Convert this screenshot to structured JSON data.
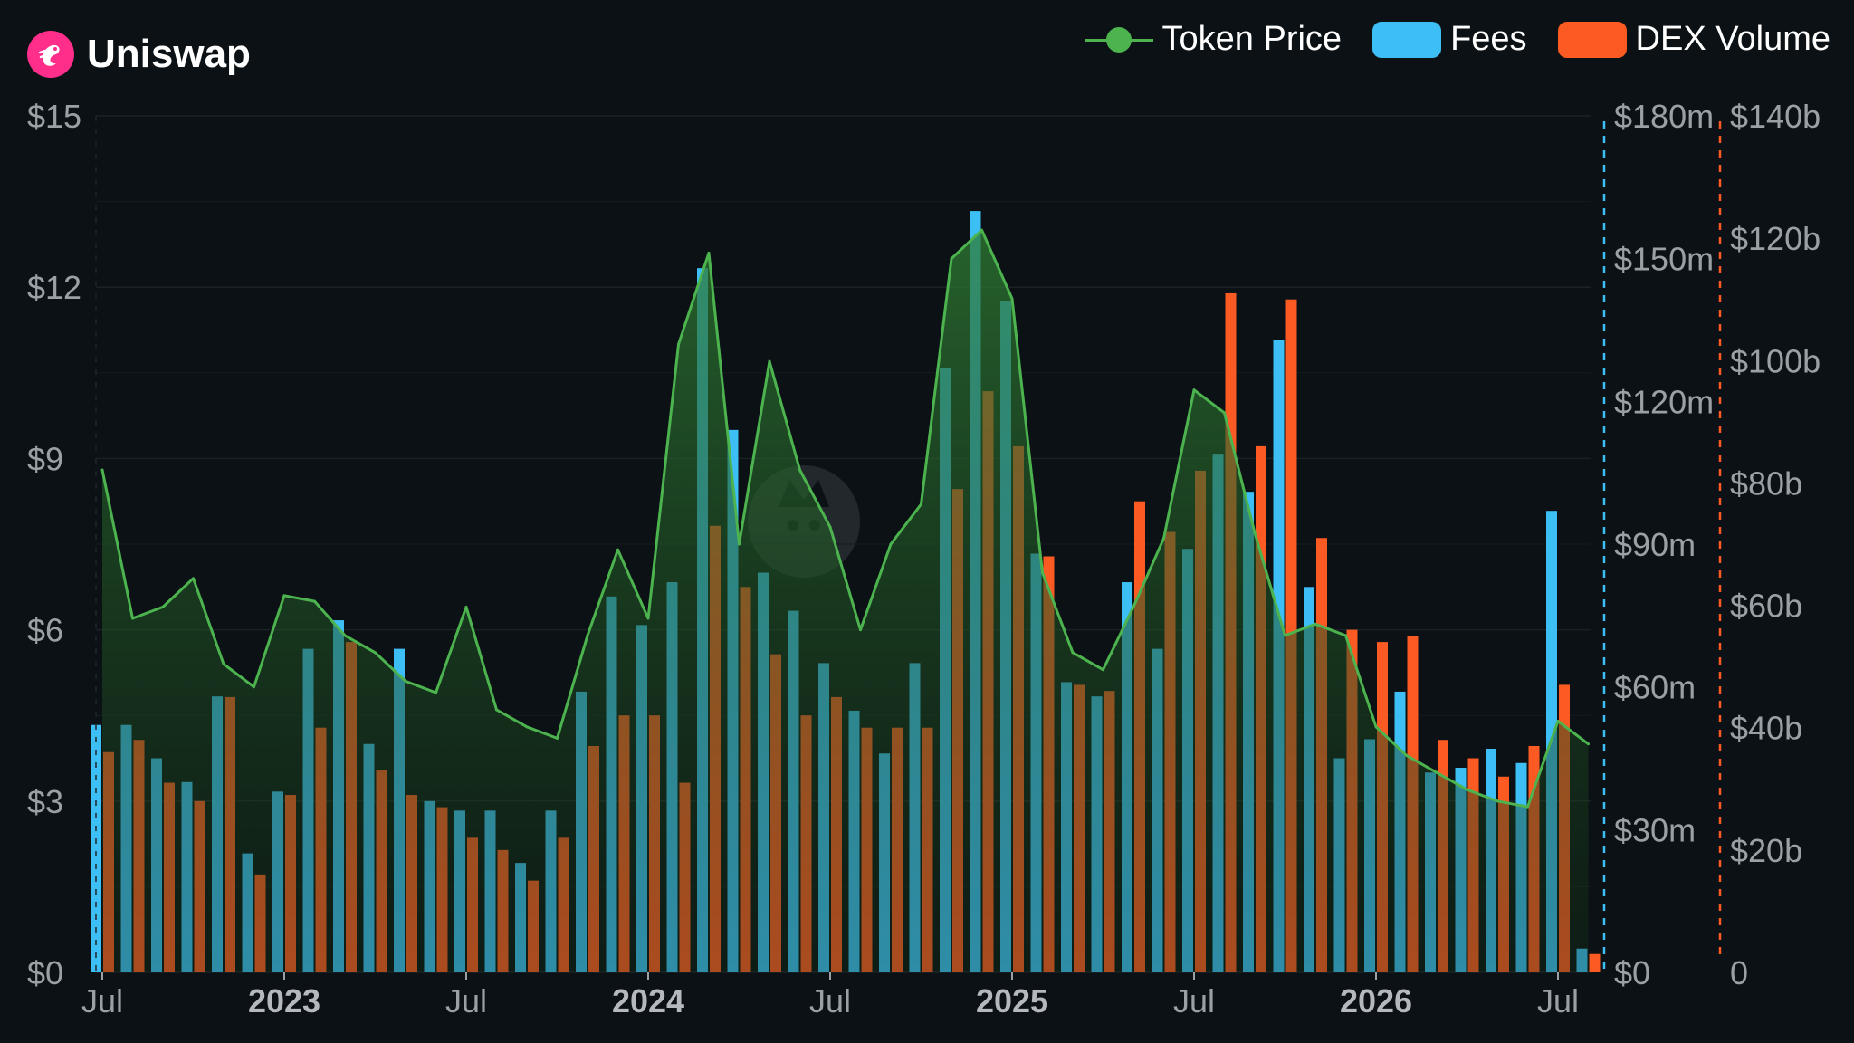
{
  "header": {
    "title": "Uniswap"
  },
  "legend": [
    {
      "label": "Token Price",
      "color": "#4cb34f",
      "kind": "line"
    },
    {
      "label": "Fees",
      "color": "#3dbff5",
      "kind": "bar"
    },
    {
      "label": "DEX Volume",
      "color": "#fc5a23",
      "kind": "bar"
    }
  ],
  "chart_data": {
    "type": "bar",
    "title": "",
    "x_ticks": [
      {
        "label": "Jul",
        "index": 0,
        "bold": false
      },
      {
        "label": "2023",
        "index": 6,
        "bold": true
      },
      {
        "label": "Jul",
        "index": 12,
        "bold": false
      },
      {
        "label": "2024",
        "index": 18,
        "bold": true
      },
      {
        "label": "Jul",
        "index": 24,
        "bold": false
      },
      {
        "label": "2025",
        "index": 30,
        "bold": true
      },
      {
        "label": "Jul",
        "index": 36,
        "bold": false
      },
      {
        "label": "2026",
        "index": 42,
        "bold": true
      },
      {
        "label": "Jul",
        "index": 48,
        "bold": false
      }
    ],
    "axes": {
      "price": {
        "range": [
          0,
          15
        ],
        "ticks": [
          0,
          3,
          6,
          9,
          12,
          15
        ],
        "labels": [
          "$0",
          "$3",
          "$6",
          "$9",
          "$12",
          "$15"
        ]
      },
      "fees": {
        "range": [
          0,
          180
        ],
        "unit": "millions USD",
        "ticks": [
          0,
          30,
          60,
          90,
          120,
          150,
          180
        ],
        "labels": [
          "$0",
          "$30m",
          "$60m",
          "$90m",
          "$120m",
          "$150m",
          "$180m"
        ]
      },
      "volume": {
        "range": [
          0,
          140
        ],
        "unit": "billions USD",
        "ticks": [
          0,
          20,
          40,
          60,
          80,
          100,
          120,
          140
        ],
        "labels": [
          "0",
          "$20b",
          "$40b",
          "$60b",
          "$80b",
          "$100b",
          "$120b",
          "$140b"
        ]
      }
    },
    "series": [
      {
        "name": "Token Price",
        "color": "#4cb34f",
        "values": [
          8.8,
          6.2,
          6.4,
          6.9,
          5.4,
          5.0,
          6.6,
          6.5,
          5.9,
          5.6,
          5.1,
          4.9,
          6.4,
          4.6,
          4.3,
          4.1,
          5.9,
          7.4,
          6.2,
          11.0,
          12.6,
          7.5,
          10.7,
          8.8,
          7.8,
          6.0,
          7.5,
          8.2,
          12.5,
          13.0,
          11.8,
          7.0,
          5.6,
          5.3,
          6.4,
          7.6,
          10.2,
          9.8,
          7.7,
          5.9,
          6.1,
          5.9,
          4.3,
          3.8,
          3.5,
          3.2,
          3.0,
          2.9,
          4.4,
          4.0
        ]
      },
      {
        "name": "Fees",
        "color": "#3dbff5",
        "values": [
          52,
          52,
          45,
          40,
          58,
          25,
          38,
          68,
          74,
          48,
          68,
          36,
          34,
          34,
          23,
          34,
          59,
          79,
          73,
          82,
          148,
          114,
          84,
          76,
          65,
          55,
          46,
          65,
          127,
          160,
          141,
          88,
          61,
          58,
          82,
          68,
          89,
          109,
          101,
          133,
          81,
          45,
          49,
          59,
          42,
          43,
          47,
          44,
          97,
          5
        ]
      },
      {
        "name": "DEX Volume",
        "color": "#fc5a23",
        "values": [
          36,
          38,
          31,
          28,
          45,
          16,
          29,
          40,
          54,
          33,
          29,
          27,
          22,
          20,
          15,
          22,
          37,
          42,
          42,
          31,
          73,
          63,
          52,
          42,
          45,
          40,
          40,
          40,
          79,
          95,
          86,
          68,
          47,
          46,
          77,
          72,
          82,
          111,
          86,
          110,
          71,
          56,
          54,
          55,
          38,
          35,
          32,
          37,
          47,
          3
        ]
      }
    ]
  }
}
